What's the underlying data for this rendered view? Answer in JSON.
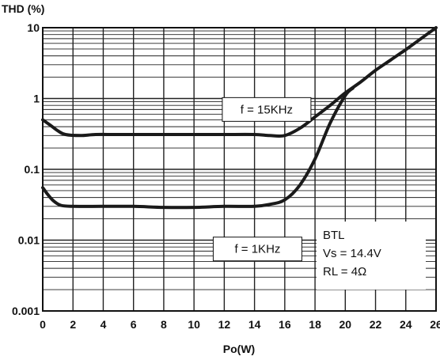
{
  "chart_data": {
    "type": "line",
    "ylabel": "THD (%)",
    "xlabel": "Po(W)",
    "xlim": [
      0,
      26
    ],
    "ylim": [
      0.001,
      10
    ],
    "yscale": "log",
    "grid": true,
    "x_ticks": [
      "0",
      "2",
      "4",
      "6",
      "8",
      "10",
      "12",
      "14",
      "16",
      "18",
      "20",
      "22",
      "24",
      "26"
    ],
    "y_ticks": [
      "0.001",
      "0.01",
      "0.1",
      "1",
      "10"
    ],
    "series": [
      {
        "name": "f = 15KHz",
        "points": [
          [
            0,
            0.5
          ],
          [
            0.5,
            0.42
          ],
          [
            1,
            0.35
          ],
          [
            1.5,
            0.31
          ],
          [
            2.5,
            0.3
          ],
          [
            3.5,
            0.31
          ],
          [
            5,
            0.31
          ],
          [
            8,
            0.31
          ],
          [
            10,
            0.31
          ],
          [
            12,
            0.31
          ],
          [
            14,
            0.31
          ],
          [
            15,
            0.3
          ],
          [
            16,
            0.3
          ],
          [
            17,
            0.38
          ],
          [
            18,
            0.55
          ],
          [
            19,
            0.8
          ],
          [
            20,
            1.2
          ],
          [
            21,
            1.7
          ],
          [
            22,
            2.5
          ],
          [
            23,
            3.5
          ],
          [
            24,
            4.9
          ],
          [
            25,
            7
          ],
          [
            26,
            10
          ]
        ]
      },
      {
        "name": "f = 1KHz",
        "points": [
          [
            0,
            0.055
          ],
          [
            0.3,
            0.045
          ],
          [
            0.7,
            0.036
          ],
          [
            1.2,
            0.031
          ],
          [
            2,
            0.03
          ],
          [
            4,
            0.03
          ],
          [
            6,
            0.03
          ],
          [
            8,
            0.029
          ],
          [
            10,
            0.029
          ],
          [
            12,
            0.03
          ],
          [
            14,
            0.03
          ],
          [
            15,
            0.032
          ],
          [
            16,
            0.037
          ],
          [
            17,
            0.06
          ],
          [
            18,
            0.14
          ],
          [
            19,
            0.45
          ],
          [
            20,
            1.1
          ],
          [
            20.5,
            1.4
          ]
        ]
      }
    ],
    "annotations": [
      {
        "text": "f = 15KHz",
        "x": 14.8,
        "y": 0.7
      },
      {
        "text": "f = 1KHz",
        "x": 14.2,
        "y": 0.0075
      }
    ],
    "note": {
      "lines": [
        "BTL",
        "Vs = 14.4V",
        "RL = 4Ω"
      ]
    }
  }
}
